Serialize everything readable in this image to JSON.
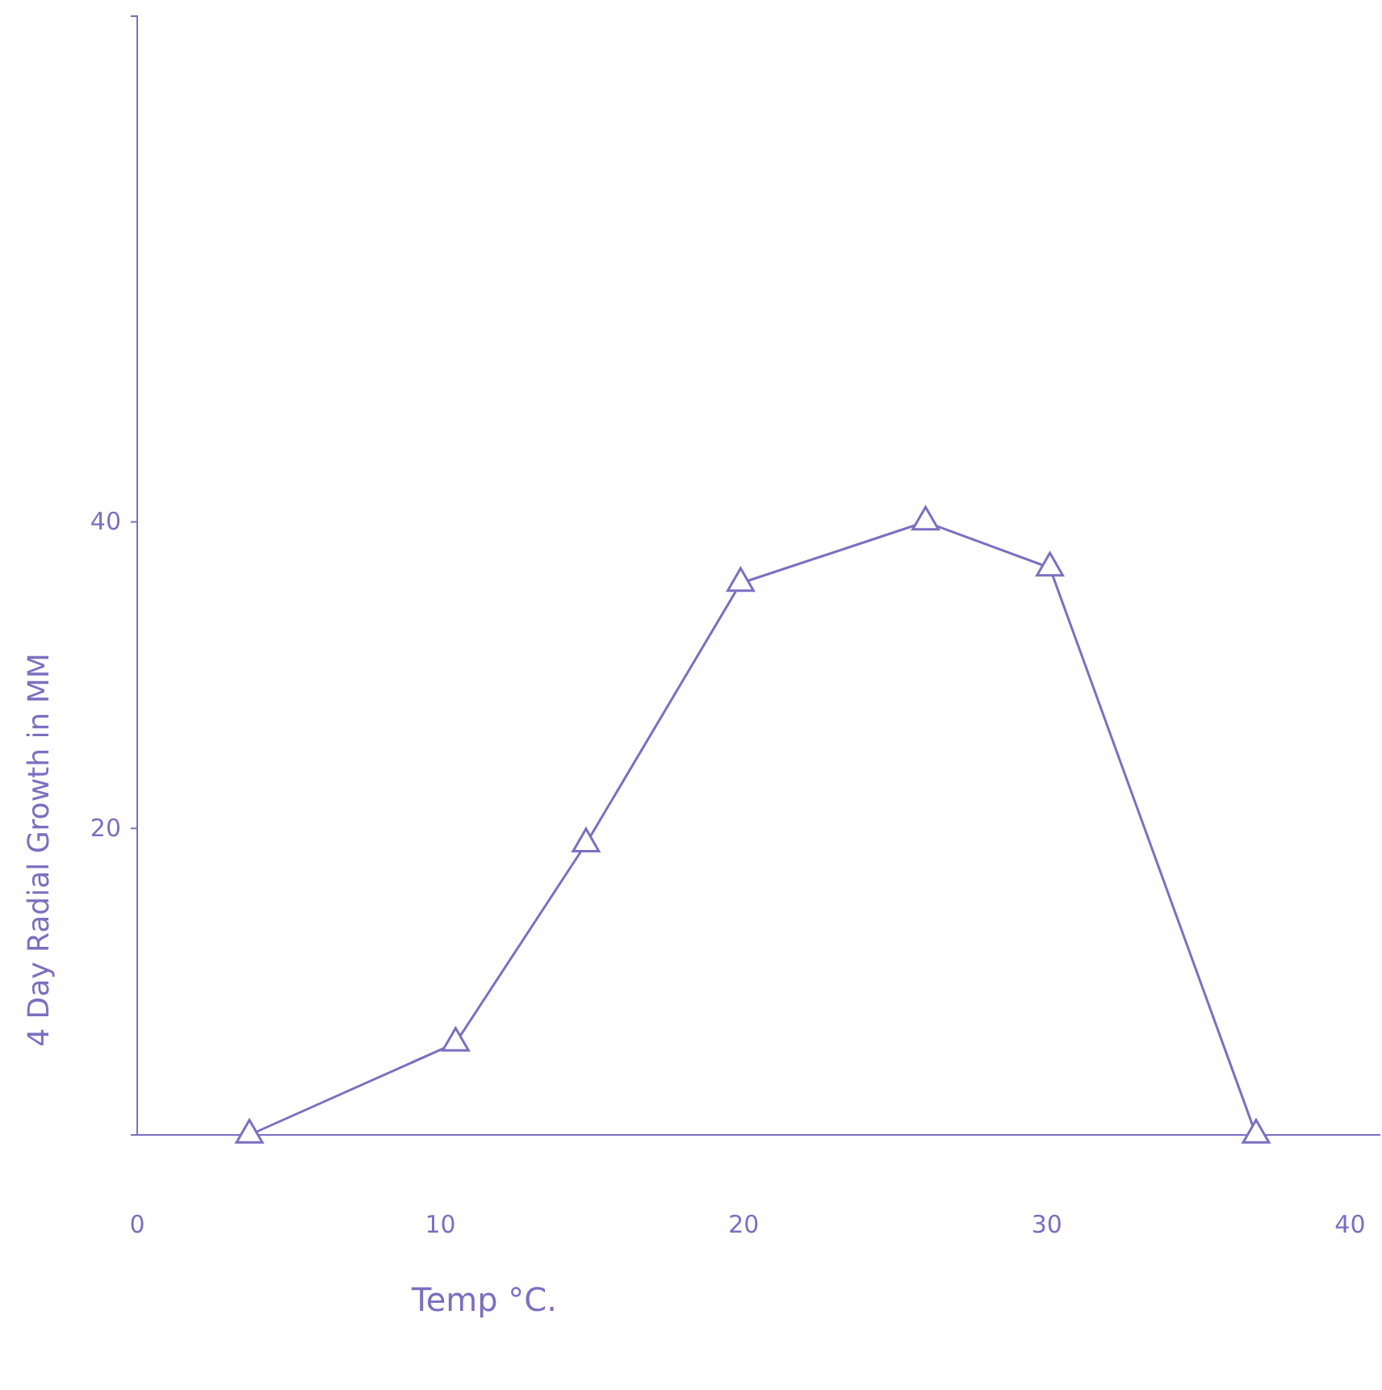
{
  "chart_data": {
    "type": "line",
    "xlabel": "Temp °C.",
    "ylabel": "4 Day Radial Growth in MM",
    "x": [
      3.7,
      10.5,
      14.8,
      19.9,
      26,
      30.1,
      36.9
    ],
    "series": [
      {
        "color": "#7a70c0",
        "values": [
          0,
          6,
          19,
          36,
          40,
          37,
          0
        ]
      }
    ],
    "xlim": [
      0,
      41
    ],
    "ylim": [
      0,
      73
    ],
    "xticks": [
      0,
      10,
      20,
      30,
      40
    ],
    "yticks": [
      20,
      40
    ],
    "marker": "triangle",
    "line_style": "solid"
  }
}
